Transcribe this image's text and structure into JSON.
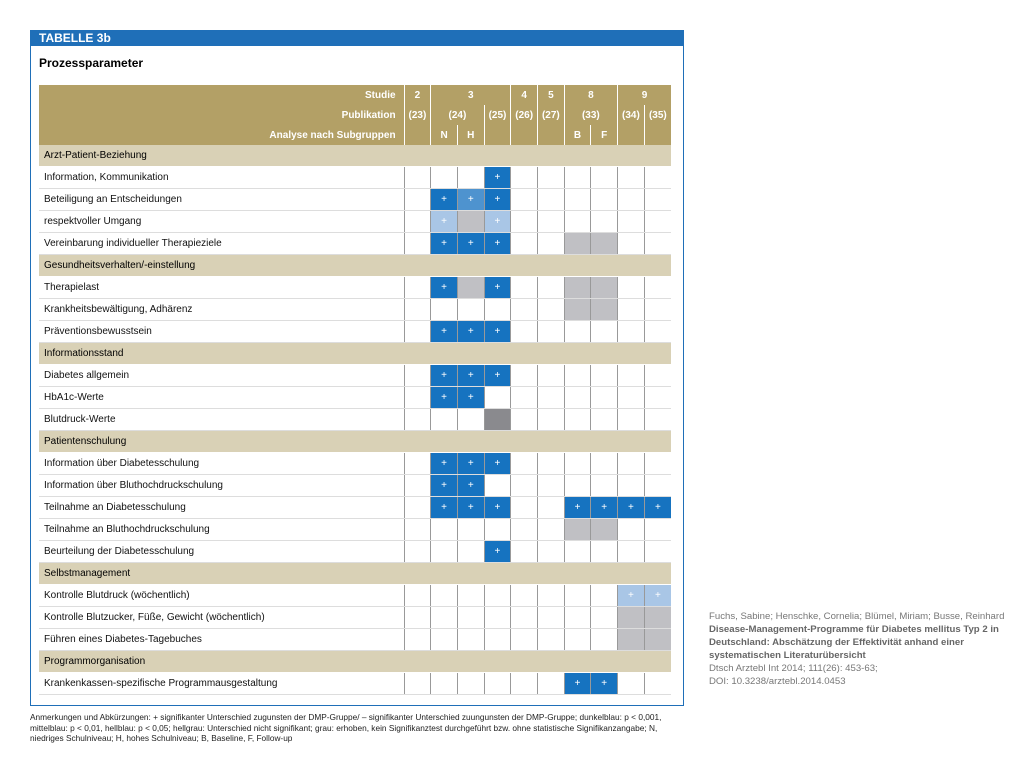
{
  "header": {
    "label": "TABELLE 3b",
    "title": "Prozessparameter"
  },
  "table": {
    "head": [
      {
        "label": "Studie",
        "cells": [
          {
            "text": "2",
            "span": 1
          },
          {
            "text": "3",
            "span": 3
          },
          {
            "text": "4",
            "span": 1
          },
          {
            "text": "5",
            "span": 1
          },
          {
            "text": "8",
            "span": 2
          },
          {
            "text": "9",
            "span": 2
          }
        ]
      },
      {
        "label": "Publikation",
        "cells": [
          {
            "text": "(23)",
            "span": 1
          },
          {
            "text": "(24)",
            "span": 2
          },
          {
            "text": "(25)",
            "span": 1
          },
          {
            "text": "(26)",
            "span": 1
          },
          {
            "text": "(27)",
            "span": 1
          },
          {
            "text": "(33)",
            "span": 2
          },
          {
            "text": "(34)",
            "span": 1
          },
          {
            "text": "(35)",
            "span": 1
          }
        ]
      },
      {
        "label": "Analyse nach Subgruppen",
        "cells": [
          null,
          {
            "text": "N",
            "span": 1
          },
          {
            "text": "H",
            "span": 1
          },
          null,
          null,
          null,
          {
            "text": "B",
            "span": 1
          },
          {
            "text": "F",
            "span": 1
          },
          null,
          null
        ]
      }
    ],
    "sections": [
      {
        "title": "Arzt-Patient-Beziehung",
        "rows": [
          {
            "label": "Information, Kommunikation",
            "cells": [
              null,
              null,
              null,
              {
                "fill": "#1673c0",
                "text": "+"
              },
              null,
              null,
              null,
              null,
              null,
              null
            ]
          },
          {
            "label": "Beteiligung an Entscheidungen",
            "cells": [
              null,
              {
                "fill": "#1673c0",
                "text": "+"
              },
              {
                "fill": "#4e93cf",
                "text": "+"
              },
              {
                "fill": "#1673c0",
                "text": "+"
              },
              null,
              null,
              null,
              null,
              null,
              null
            ]
          },
          {
            "label": "respektvoller Umgang",
            "cells": [
              null,
              {
                "fill": "#a9c6e6",
                "text": "+"
              },
              {
                "fill": "#c0c0c4"
              },
              {
                "fill": "#a9c6e6",
                "text": "+"
              },
              null,
              null,
              null,
              null,
              null,
              null
            ]
          },
          {
            "label": "Vereinbarung individueller Therapieziele",
            "cells": [
              null,
              {
                "fill": "#1673c0",
                "text": "+"
              },
              {
                "fill": "#1673c0",
                "text": "+"
              },
              {
                "fill": "#1673c0",
                "text": "+"
              },
              null,
              null,
              {
                "fill": "#c0c0c4"
              },
              {
                "fill": "#c0c0c4"
              },
              null,
              null
            ]
          }
        ]
      },
      {
        "title": "Gesundheitsverhalten/-einstellung",
        "rows": [
          {
            "label": "Therapielast",
            "cells": [
              null,
              {
                "fill": "#1673c0",
                "text": "+"
              },
              {
                "fill": "#c0c0c4"
              },
              {
                "fill": "#1673c0",
                "text": "+"
              },
              null,
              null,
              {
                "fill": "#c0c0c4"
              },
              {
                "fill": "#c0c0c4"
              },
              null,
              null
            ]
          },
          {
            "label": "Krankheitsbewältigung, Adhärenz",
            "cells": [
              null,
              null,
              null,
              null,
              null,
              null,
              {
                "fill": "#c0c0c4"
              },
              {
                "fill": "#c0c0c4"
              },
              null,
              null
            ]
          },
          {
            "label": "Präventionsbewusstsein",
            "cells": [
              null,
              {
                "fill": "#1673c0",
                "text": "+"
              },
              {
                "fill": "#1673c0",
                "text": "+"
              },
              {
                "fill": "#1673c0",
                "text": "+"
              },
              null,
              null,
              null,
              null,
              null,
              null
            ]
          }
        ]
      },
      {
        "title": "Informationsstand",
        "rows": [
          {
            "label": "Diabetes allgemein",
            "cells": [
              null,
              {
                "fill": "#1673c0",
                "text": "+"
              },
              {
                "fill": "#1673c0",
                "text": "+"
              },
              {
                "fill": "#1673c0",
                "text": "+"
              },
              null,
              null,
              null,
              null,
              null,
              null
            ]
          },
          {
            "label": "HbA1c-Werte",
            "cells": [
              null,
              {
                "fill": "#1673c0",
                "text": "+"
              },
              {
                "fill": "#1673c0",
                "text": "+"
              },
              null,
              null,
              null,
              null,
              null,
              null,
              null
            ]
          },
          {
            "label": "Blutdruck-Werte",
            "cells": [
              null,
              null,
              null,
              {
                "fill": "#8a8a8e"
              },
              null,
              null,
              null,
              null,
              null,
              null
            ]
          }
        ]
      },
      {
        "title": "Patientenschulung",
        "rows": [
          {
            "label": "Information über Diabetesschulung",
            "cells": [
              null,
              {
                "fill": "#1673c0",
                "text": "+"
              },
              {
                "fill": "#1673c0",
                "text": "+"
              },
              {
                "fill": "#1673c0",
                "text": "+"
              },
              null,
              null,
              null,
              null,
              null,
              null
            ]
          },
          {
            "label": "Information über Bluthochdruckschulung",
            "cells": [
              null,
              {
                "fill": "#1673c0",
                "text": "+"
              },
              {
                "fill": "#1673c0",
                "text": "+"
              },
              null,
              null,
              null,
              null,
              null,
              null,
              null
            ]
          },
          {
            "label": "Teilnahme an Diabetesschulung",
            "cells": [
              null,
              {
                "fill": "#1673c0",
                "text": "+"
              },
              {
                "fill": "#1673c0",
                "text": "+"
              },
              {
                "fill": "#1673c0",
                "text": "+"
              },
              null,
              null,
              {
                "fill": "#1673c0",
                "text": "+"
              },
              {
                "fill": "#1673c0",
                "text": "+"
              },
              {
                "fill": "#1673c0",
                "text": "+"
              },
              {
                "fill": "#1673c0",
                "text": "+"
              }
            ]
          },
          {
            "label": "Teilnahme an Bluthochdruckschulung",
            "cells": [
              null,
              null,
              null,
              null,
              null,
              null,
              {
                "fill": "#c0c0c4"
              },
              {
                "fill": "#c0c0c4"
              },
              null,
              null
            ]
          },
          {
            "label": "Beurteilung der Diabetesschulung",
            "cells": [
              null,
              null,
              null,
              {
                "fill": "#1673c0",
                "text": "+"
              },
              null,
              null,
              null,
              null,
              null,
              null
            ]
          }
        ]
      },
      {
        "title": "Selbstmanagement",
        "rows": [
          {
            "label": "Kontrolle Blutdruck (wöchentlich)",
            "cells": [
              null,
              null,
              null,
              null,
              null,
              null,
              null,
              null,
              {
                "fill": "#a9c6e6",
                "text": "+"
              },
              {
                "fill": "#a9c6e6",
                "text": "+"
              }
            ]
          },
          {
            "label": "Kontrolle Blutzucker, Füße, Gewicht (wöchentlich)",
            "cells": [
              null,
              null,
              null,
              null,
              null,
              null,
              null,
              null,
              {
                "fill": "#c0c0c4"
              },
              {
                "fill": "#c0c0c4"
              }
            ]
          },
          {
            "label": "Führen eines Diabetes-Tagebuches",
            "cells": [
              null,
              null,
              null,
              null,
              null,
              null,
              null,
              null,
              {
                "fill": "#c0c0c4"
              },
              {
                "fill": "#c0c0c4"
              }
            ]
          }
        ]
      },
      {
        "title": "Programmorganisation",
        "rows": [
          {
            "label": "Krankenkassen-spezifische Programmausgestaltung",
            "cells": [
              null,
              null,
              null,
              null,
              null,
              null,
              {
                "fill": "#1673c0",
                "text": "+"
              },
              {
                "fill": "#1673c0",
                "text": "+"
              },
              null,
              null
            ]
          }
        ]
      }
    ]
  },
  "note": "Anmerkungen und Abkürzungen: + signifikanter Unterschied zugunsten der DMP-Gruppe/ – signifikanter Unterschied zuungunsten der DMP-Gruppe; dunkelblau: p < 0,001, mittelblau: p < 0,01, hellblau: p < 0,05; hellgrau: Unterschied nicht signifikant; grau: erhoben, kein Signifikanztest durchgeführt bzw. ohne statistische Signifikanzangabe; N, niedriges Schulniveau; H, hohes Schulniveau; B, Baseline, F, Follow-up",
  "citation": {
    "authors": "Fuchs, Sabine; Henschke, Cornelia; Blümel, Miriam; Busse, Reinhard",
    "title": "Disease-Management-Programme für Diabetes mellitus Typ 2 in Deutschland: Abschätzung der Effektivität anhand einer systematischen Literaturübersicht",
    "journal": "Dtsch Arztebl Int 2014; 111(26): 453-63;",
    "doi": "DOI: 10.3238/arztebl.2014.0453"
  }
}
